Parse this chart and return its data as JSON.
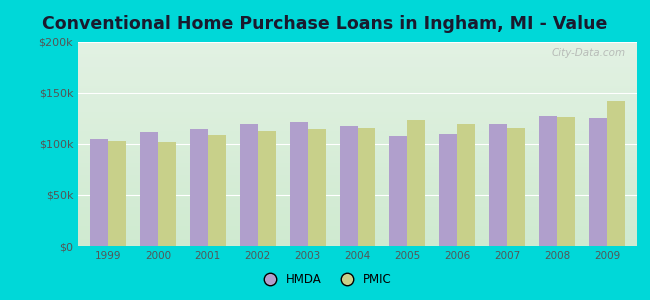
{
  "title": "Conventional Home Purchase Loans in Ingham, MI - Value",
  "years": [
    1999,
    2000,
    2001,
    2002,
    2003,
    2004,
    2005,
    2006,
    2007,
    2008,
    2009
  ],
  "hmda": [
    105000,
    112000,
    115000,
    120000,
    122000,
    118000,
    108000,
    110000,
    120000,
    127000,
    125000
  ],
  "pmic": [
    103000,
    102000,
    109000,
    113000,
    115000,
    116000,
    124000,
    120000,
    116000,
    126000,
    142000
  ],
  "hmda_color": "#b09fcc",
  "pmic_color": "#c8d08a",
  "background_top": "#d8ecd8",
  "background_bottom": "#f0f8f0",
  "outer_bg": "#00d8d8",
  "ylim": [
    0,
    200000
  ],
  "yticks": [
    0,
    50000,
    100000,
    150000,
    200000
  ],
  "ytick_labels": [
    "$0",
    "$50k",
    "$100k",
    "$150k",
    "$200k"
  ],
  "legend_labels": [
    "HMDA",
    "PMIC"
  ],
  "bar_width": 0.36,
  "title_fontsize": 12.5,
  "title_color": "#1a1a2e",
  "tick_color": "#555555",
  "watermark": "City-Data.com"
}
